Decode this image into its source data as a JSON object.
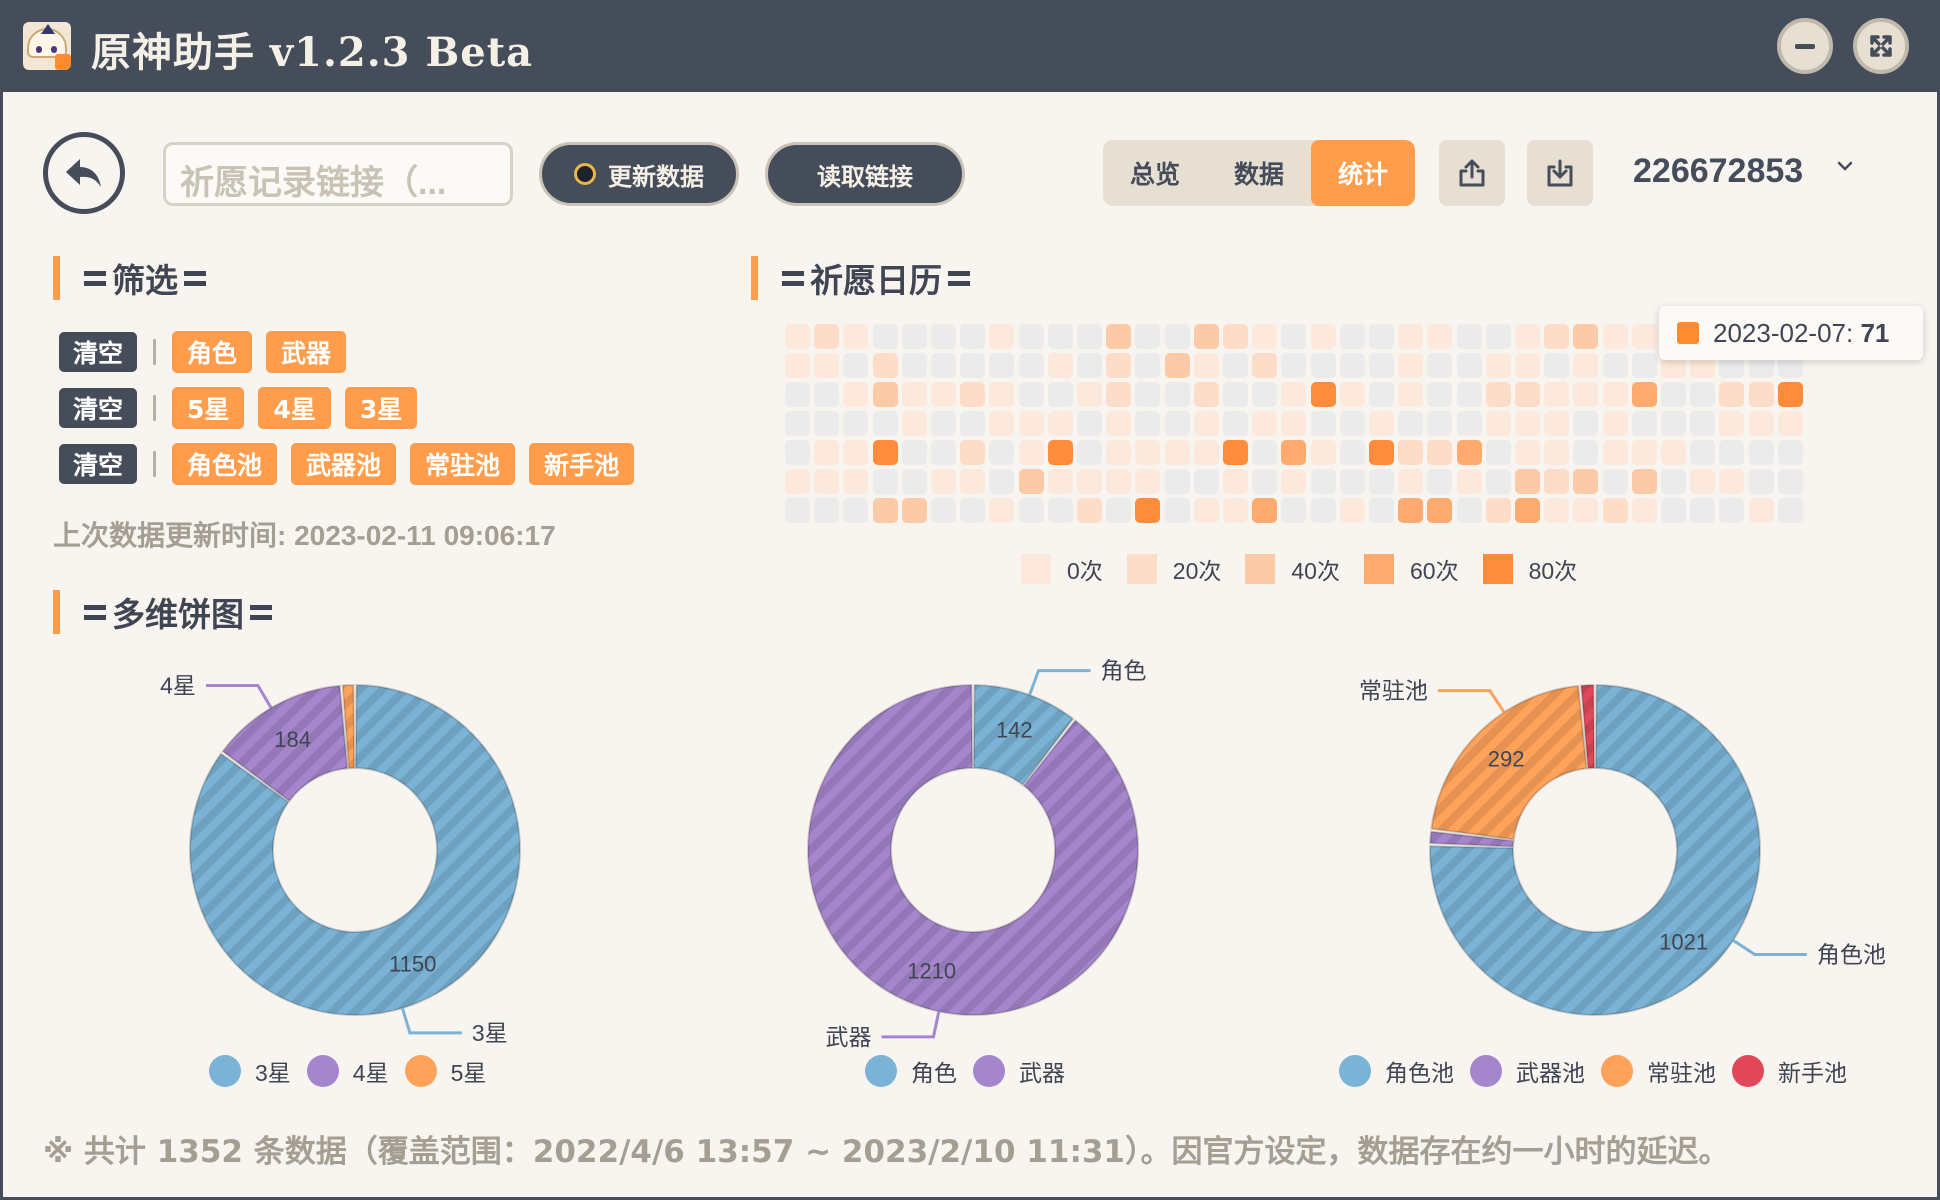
{
  "window": {
    "title": "原神助手 v1.2.3 Beta"
  },
  "toolbar": {
    "url_placeholder": "祈愿记录链接（...",
    "update_label": "更新数据",
    "read_label": "读取链接",
    "tabs": [
      {
        "label": "总览"
      },
      {
        "label": "数据"
      },
      {
        "label": "统计",
        "active": true
      }
    ],
    "uid": "226672853"
  },
  "filter": {
    "title": "筛选",
    "rows": [
      {
        "clear": "清空",
        "chips": [
          "角色",
          "武器"
        ]
      },
      {
        "clear": "清空",
        "chips": [
          "5星",
          "4星",
          "3星"
        ]
      },
      {
        "clear": "清空",
        "chips": [
          "角色池",
          "武器池",
          "常驻池",
          "新手池"
        ]
      }
    ],
    "last_update": "上次数据更新时间: 2023-02-11 09:06:17"
  },
  "calendar": {
    "title": "祈愿日历",
    "tooltip": {
      "date": "2023-02-07:",
      "value": "71"
    },
    "legend": [
      {
        "label": "0次",
        "color": "#fde9dc"
      },
      {
        "label": "20次",
        "color": "#fddcc8"
      },
      {
        "label": "40次",
        "color": "#fdcaa8"
      },
      {
        "label": "60次",
        "color": "#ffab70"
      },
      {
        "label": "80次",
        "color": "#ff8c3a"
      }
    ]
  },
  "pies": {
    "title": "多维饼图",
    "charts": [
      {
        "slices": [
          {
            "name": "3星",
            "value": 1150,
            "label": "1150",
            "color": "#7ab3d6"
          },
          {
            "name": "4星",
            "value": 184,
            "label": "184",
            "color": "#a585cc"
          },
          {
            "name": "5星",
            "value": 18,
            "label": "",
            "color": "#ffa25a"
          }
        ]
      },
      {
        "slices": [
          {
            "name": "角色",
            "value": 142,
            "label": "142",
            "color": "#7ab3d6"
          },
          {
            "name": "武器",
            "value": 1210,
            "label": "1210",
            "color": "#a585cc"
          }
        ]
      },
      {
        "slices": [
          {
            "name": "角色池",
            "value": 1021,
            "label": "1021",
            "color": "#7ab3d6"
          },
          {
            "name": "武器池",
            "value": 19,
            "label": "",
            "color": "#a585cc"
          },
          {
            "name": "常驻池",
            "value": 292,
            "label": "292",
            "color": "#ffa25a"
          },
          {
            "name": "新手池",
            "value": 20,
            "label": "",
            "color": "#e0485a"
          }
        ]
      }
    ]
  },
  "footer": "※ 共计 1352 条数据（覆盖范围：2022/4/6 13:57 ~ 2023/2/10 11:31）。因官方设定，数据存在约一小时的延迟。"
}
